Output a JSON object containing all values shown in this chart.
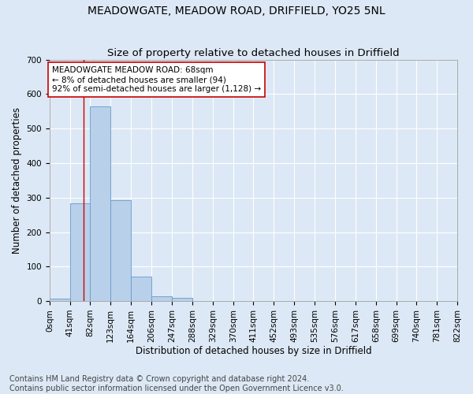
{
  "title": "MEADOWGATE, MEADOW ROAD, DRIFFIELD, YO25 5NL",
  "subtitle": "Size of property relative to detached houses in Driffield",
  "xlabel": "Distribution of detached houses by size in Driffield",
  "ylabel": "Number of detached properties",
  "footnote1": "Contains HM Land Registry data © Crown copyright and database right 2024.",
  "footnote2": "Contains public sector information licensed under the Open Government Licence v3.0.",
  "bin_edges": [
    0,
    41,
    82,
    123,
    164,
    206,
    247,
    288,
    329,
    370,
    411,
    452,
    493,
    535,
    576,
    617,
    658,
    699,
    740,
    781,
    822
  ],
  "bin_labels": [
    "0sqm",
    "41sqm",
    "82sqm",
    "123sqm",
    "164sqm",
    "206sqm",
    "247sqm",
    "288sqm",
    "329sqm",
    "370sqm",
    "411sqm",
    "452sqm",
    "493sqm",
    "535sqm",
    "576sqm",
    "617sqm",
    "658sqm",
    "699sqm",
    "740sqm",
    "781sqm",
    "822sqm"
  ],
  "counts": [
    8,
    283,
    565,
    293,
    70,
    15,
    10,
    0,
    0,
    0,
    0,
    0,
    0,
    0,
    0,
    0,
    0,
    0,
    0,
    0
  ],
  "bar_color": "#b8d0ea",
  "bar_edge_color": "#6699cc",
  "property_line_x": 68,
  "property_line_color": "#cc0000",
  "annotation_text": "MEADOWGATE MEADOW ROAD: 68sqm\n← 8% of detached houses are smaller (94)\n92% of semi-detached houses are larger (1,128) →",
  "annotation_box_color": "#ffffff",
  "annotation_box_edge": "#cc0000",
  "ylim": [
    0,
    700
  ],
  "yticks": [
    0,
    100,
    200,
    300,
    400,
    500,
    600,
    700
  ],
  "background_color": "#dce8f5",
  "plot_bg_color": "#dce8f5",
  "title_fontsize": 10,
  "subtitle_fontsize": 9.5,
  "axis_label_fontsize": 8.5,
  "tick_fontsize": 7.5,
  "annotation_fontsize": 7.5,
  "footnote_fontsize": 7
}
